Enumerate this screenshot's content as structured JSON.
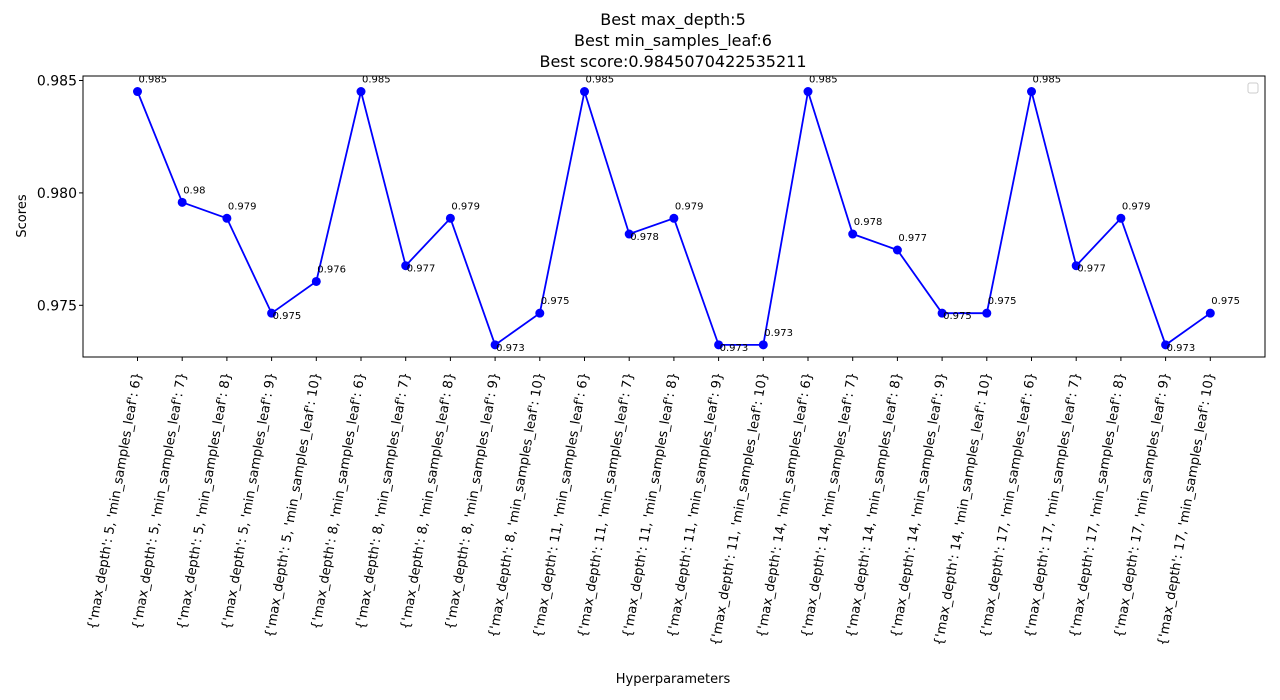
{
  "chart_data": {
    "type": "line",
    "title": [
      "Best max_depth:5",
      "Best min_samples_leaf:6",
      "Best score:0.9845070422535211"
    ],
    "xlabel": "Hyperparameters",
    "ylabel": "Scores",
    "ylim": [
      0.9727,
      0.9852
    ],
    "yticks": [
      0.975,
      0.98,
      0.985
    ],
    "ytick_labels": [
      "0.975",
      "0.980",
      "0.985"
    ],
    "grid": false,
    "legend": "top-right (empty)",
    "series": [
      {
        "name": "",
        "color": "#0000ff",
        "marker": "circle",
        "values": [
          0.98451,
          0.97958,
          0.97887,
          0.97465,
          0.97606,
          0.98451,
          0.97676,
          0.97887,
          0.97324,
          0.97465,
          0.98451,
          0.97817,
          0.97887,
          0.97324,
          0.97324,
          0.98451,
          0.97817,
          0.97746,
          0.97465,
          0.97465,
          0.98451,
          0.97676,
          0.97887,
          0.97324,
          0.97465
        ]
      }
    ],
    "data_labels": [
      "0.985",
      "0.98",
      "0.979",
      "0.975",
      "0.976",
      "0.985",
      "0.977",
      "0.979",
      "0.973",
      "0.975",
      "0.985",
      "0.978",
      "0.979",
      "0.973",
      "0.973",
      "0.985",
      "0.978",
      "0.977",
      "0.975",
      "0.975",
      "0.985",
      "0.977",
      "0.979",
      "0.973",
      "0.975"
    ],
    "categories": [
      "{'max_depth': 5, 'min_samples_leaf': 6}",
      "{'max_depth': 5, 'min_samples_leaf': 7}",
      "{'max_depth': 5, 'min_samples_leaf': 8}",
      "{'max_depth': 5, 'min_samples_leaf': 9}",
      "{'max_depth': 5, 'min_samples_leaf': 10}",
      "{'max_depth': 8, 'min_samples_leaf': 6}",
      "{'max_depth': 8, 'min_samples_leaf': 7}",
      "{'max_depth': 8, 'min_samples_leaf': 8}",
      "{'max_depth': 8, 'min_samples_leaf': 9}",
      "{'max_depth': 8, 'min_samples_leaf': 10}",
      "{'max_depth': 11, 'min_samples_leaf': 6}",
      "{'max_depth': 11, 'min_samples_leaf': 7}",
      "{'max_depth': 11, 'min_samples_leaf': 8}",
      "{'max_depth': 11, 'min_samples_leaf': 9}",
      "{'max_depth': 11, 'min_samples_leaf': 10}",
      "{'max_depth': 14, 'min_samples_leaf': 6}",
      "{'max_depth': 14, 'min_samples_leaf': 7}",
      "{'max_depth': 14, 'min_samples_leaf': 8}",
      "{'max_depth': 14, 'min_samples_leaf': 9}",
      "{'max_depth': 14, 'min_samples_leaf': 10}",
      "{'max_depth': 17, 'min_samples_leaf': 6}",
      "{'max_depth': 17, 'min_samples_leaf': 7}",
      "{'max_depth': 17, 'min_samples_leaf': 8}",
      "{'max_depth': 17, 'min_samples_leaf': 9}",
      "{'max_depth': 17, 'min_samples_leaf': 10}"
    ]
  }
}
